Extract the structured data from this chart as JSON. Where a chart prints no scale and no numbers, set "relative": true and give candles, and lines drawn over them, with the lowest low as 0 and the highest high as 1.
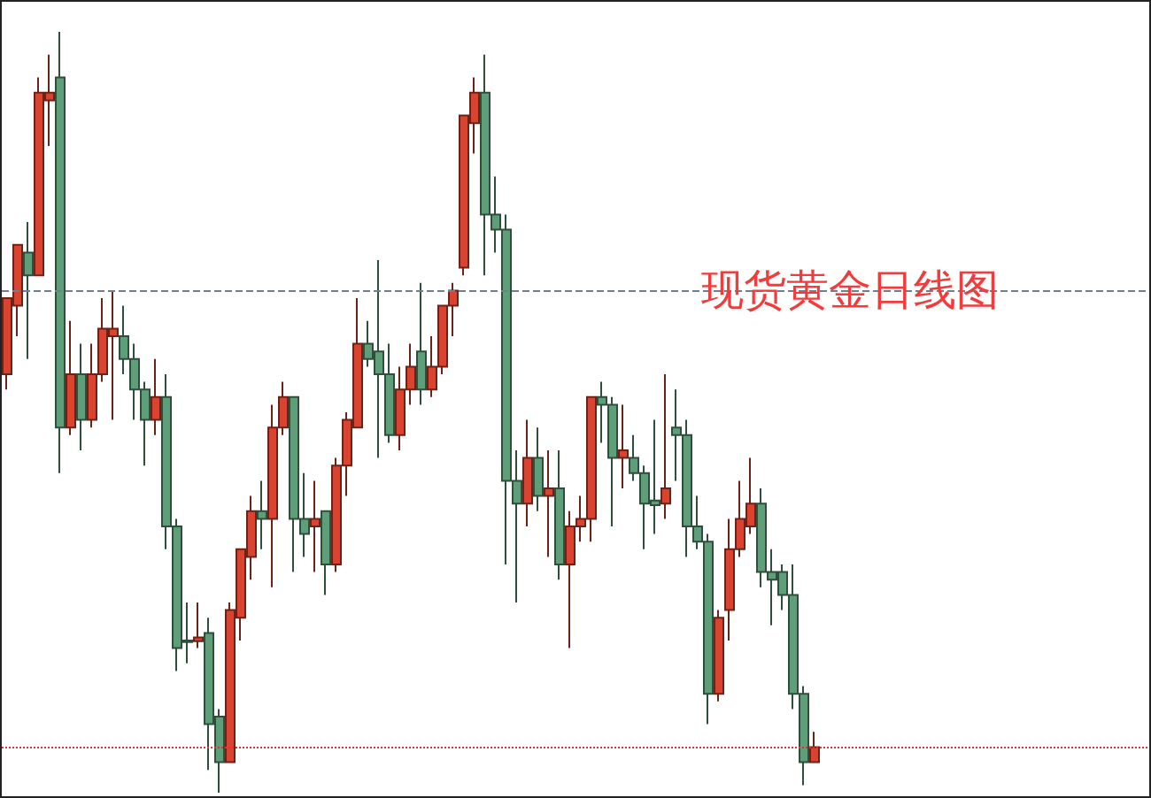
{
  "chart_data": {
    "type": "candlestick",
    "title": "现货黄金日线图",
    "relative": true,
    "categories": [
      null,
      null,
      null,
      null,
      null,
      null,
      null,
      null,
      null,
      null,
      null,
      null,
      null,
      null,
      null,
      null,
      null,
      null,
      null,
      null,
      null,
      null,
      null,
      null,
      null,
      null,
      null,
      null,
      null,
      null,
      null,
      null,
      null,
      null,
      null,
      null,
      null,
      null,
      null,
      null,
      null,
      null,
      null,
      null,
      null,
      null,
      null,
      null,
      null,
      null,
      null,
      null,
      null,
      null,
      null,
      null,
      null,
      null,
      null,
      null,
      null,
      null,
      null,
      null,
      null,
      null,
      null,
      null,
      null,
      null,
      null,
      null,
      null,
      null,
      null,
      null,
      null
    ],
    "colors": [
      "#d9432f",
      "#d9432f",
      "#5e9e78",
      "#d9432f",
      "#d9432f",
      "#5e9e78",
      "#d9432f",
      "#5e9e78",
      "#d9432f",
      "#d9432f",
      "#d9432f",
      "#5e9e78",
      "#5e9e78",
      "#5e9e78",
      "#d9432f",
      "#5e9e78",
      "#5e9e78",
      "#5e9e78",
      "#d9432f",
      "#5e9e78",
      "#5e9e78",
      "#d9432f",
      "#d9432f",
      "#d9432f",
      "#5e9e78",
      "#d9432f",
      "#d9432f",
      "#5e9e78",
      "#5e9e78",
      "#d9432f",
      "#5e9e78",
      "#d9432f",
      "#d9432f",
      "#d9432f",
      "#5e9e78",
      "#5e9e78",
      "#5e9e78",
      "#d9432f",
      "#d9432f",
      "#5e9e78",
      "#d9432f",
      "#d9432f",
      "#d9432f",
      "#d9432f",
      "#d9432f",
      "#5e9e78",
      "#5e9e78",
      "#5e9e78",
      "#5e9e78",
      "#d9432f",
      "#5e9e78",
      "#d9432f",
      "#5e9e78",
      "#d9432f",
      "#d9432f",
      "#d9432f",
      "#5e9e78",
      "#5e9e78",
      "#d9432f",
      "#5e9e78",
      "#5e9e78",
      "#5e9e78",
      "#d9432f",
      "#5e9e78",
      "#5e9e78",
      "#5e9e78",
      "#5e9e78",
      "#d9432f",
      "#d9432f",
      "#d9432f",
      "#d9432f",
      "#5e9e78",
      "#5e9e78",
      "#5e9e78",
      "#5e9e78",
      "#5e9e78",
      "#d9432f"
    ],
    "ohlc": [
      [
        0.55,
        0.65,
        0.53,
        0.65
      ],
      [
        0.64,
        0.72,
        0.6,
        0.72
      ],
      [
        0.71,
        0.75,
        0.57,
        0.68
      ],
      [
        0.68,
        0.94,
        0.68,
        0.92
      ],
      [
        0.91,
        0.97,
        0.85,
        0.92
      ],
      [
        0.94,
        1.0,
        0.42,
        0.48
      ],
      [
        0.48,
        0.62,
        0.47,
        0.55
      ],
      [
        0.55,
        0.59,
        0.45,
        0.49
      ],
      [
        0.49,
        0.59,
        0.48,
        0.55
      ],
      [
        0.55,
        0.65,
        0.54,
        0.61
      ],
      [
        0.6,
        0.66,
        0.49,
        0.61
      ],
      [
        0.6,
        0.64,
        0.55,
        0.57
      ],
      [
        0.57,
        0.59,
        0.49,
        0.53
      ],
      [
        0.53,
        0.54,
        0.43,
        0.49
      ],
      [
        0.49,
        0.57,
        0.47,
        0.52
      ],
      [
        0.52,
        0.55,
        0.32,
        0.35
      ],
      [
        0.35,
        0.36,
        0.16,
        0.19
      ],
      [
        0.2,
        0.25,
        0.17,
        0.198
      ],
      [
        0.199,
        0.25,
        0.19,
        0.204
      ],
      [
        0.21,
        0.23,
        0.03,
        0.09
      ],
      [
        0.1,
        0.11,
        0,
        0.04
      ],
      [
        0.04,
        0.25,
        0.04,
        0.24
      ],
      [
        0.23,
        0.32,
        0.2,
        0.32
      ],
      [
        0.31,
        0.39,
        0.28,
        0.37
      ],
      [
        0.37,
        0.41,
        0.32,
        0.36
      ],
      [
        0.36,
        0.51,
        0.27,
        0.48
      ],
      [
        0.48,
        0.54,
        0.47,
        0.52
      ],
      [
        0.52,
        0.52,
        0.29,
        0.36
      ],
      [
        0.36,
        0.42,
        0.31,
        0.34
      ],
      [
        0.35,
        0.41,
        0.29,
        0.36
      ],
      [
        0.37,
        0.37,
        0.26,
        0.3
      ],
      [
        0.3,
        0.44,
        0.29,
        0.43
      ],
      [
        0.43,
        0.5,
        0.39,
        0.49
      ],
      [
        0.48,
        0.65,
        0.48,
        0.59
      ],
      [
        0.59,
        0.62,
        0.56,
        0.57
      ],
      [
        0.58,
        0.7,
        0.44,
        0.55
      ],
      [
        0.55,
        0.59,
        0.46,
        0.47
      ],
      [
        0.47,
        0.56,
        0.45,
        0.53
      ],
      [
        0.53,
        0.59,
        0.51,
        0.56
      ],
      [
        0.58,
        0.67,
        0.51,
        0.53
      ],
      [
        0.53,
        0.6,
        0.52,
        0.56
      ],
      [
        0.56,
        0.64,
        0.55,
        0.64
      ],
      [
        0.64,
        0.67,
        0.6,
        0.66
      ],
      [
        0.69,
        0.89,
        0.68,
        0.89
      ],
      [
        0.88,
        0.94,
        0.84,
        0.92
      ],
      [
        0.92,
        0.97,
        0.68,
        0.76
      ],
      [
        0.76,
        0.81,
        0.71,
        0.74
      ],
      [
        0.74,
        0.76,
        0.3,
        0.41
      ],
      [
        0.41,
        0.45,
        0.25,
        0.38
      ],
      [
        0.38,
        0.49,
        0.35,
        0.44
      ],
      [
        0.44,
        0.48,
        0.37,
        0.39
      ],
      [
        0.39,
        0.45,
        0.31,
        0.4
      ],
      [
        0.4,
        0.45,
        0.28,
        0.3
      ],
      [
        0.3,
        0.37,
        0.19,
        0.35
      ],
      [
        0.35,
        0.39,
        0.33,
        0.36
      ],
      [
        0.36,
        0.52,
        0.33,
        0.52
      ],
      [
        0.52,
        0.54,
        0.46,
        0.51
      ],
      [
        0.51,
        0.52,
        0.35,
        0.44
      ],
      [
        0.44,
        0.51,
        0.4,
        0.45
      ],
      [
        0.44,
        0.47,
        0.41,
        0.42
      ],
      [
        0.42,
        0.43,
        0.32,
        0.38
      ],
      [
        0.384,
        0.49,
        0.34,
        0.378
      ],
      [
        0.38,
        0.55,
        0.36,
        0.4
      ],
      [
        0.48,
        0.53,
        0.41,
        0.47
      ],
      [
        0.47,
        0.49,
        0.31,
        0.35
      ],
      [
        0.35,
        0.39,
        0.32,
        0.33
      ],
      [
        0.33,
        0.34,
        0.09,
        0.13
      ],
      [
        0.13,
        0.24,
        0.12,
        0.23
      ],
      [
        0.24,
        0.36,
        0.2,
        0.32
      ],
      [
        0.32,
        0.41,
        0.31,
        0.36
      ],
      [
        0.35,
        0.44,
        0.34,
        0.38
      ],
      [
        0.38,
        0.4,
        0.27,
        0.29
      ],
      [
        0.29,
        0.32,
        0.22,
        0.28
      ],
      [
        0.29,
        0.3,
        0.24,
        0.26
      ],
      [
        0.26,
        0.3,
        0.11,
        0.13
      ],
      [
        0.13,
        0.14,
        0.01,
        0.04
      ],
      [
        0.04,
        0.08,
        0.04,
        0.06
      ]
    ],
    "ref_lines": [
      {
        "axis": "y",
        "value": 0.66,
        "color": "#6e7f8f",
        "line_style": "dashed"
      },
      {
        "axis": "y",
        "value": 0.06,
        "color": "#e03030",
        "line_style": "dotted"
      }
    ]
  }
}
